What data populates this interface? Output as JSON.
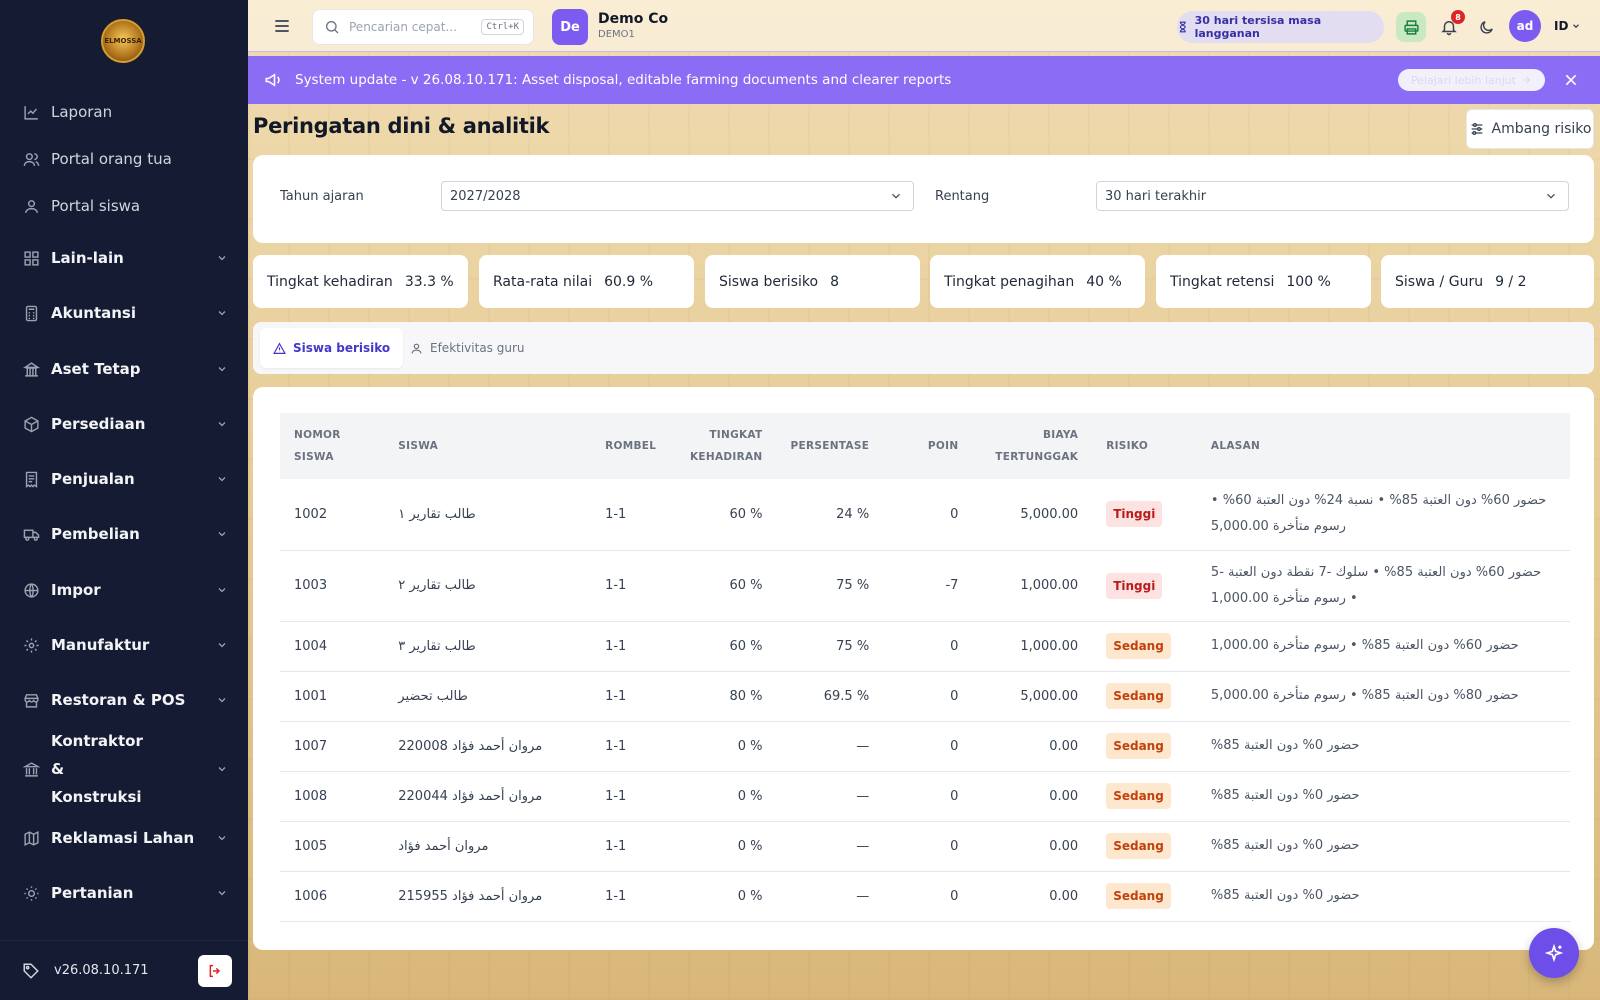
{
  "sidebar": {
    "logo_text": "ELMOSSA",
    "items": [
      {
        "label": "Laporan"
      },
      {
        "label": "Portal orang tua"
      },
      {
        "label": "Portal siswa"
      },
      {
        "label": "Lain-lain"
      },
      {
        "label": "Akuntansi"
      },
      {
        "label": "Aset Tetap"
      },
      {
        "label": "Persediaan"
      },
      {
        "label": "Penjualan"
      },
      {
        "label": "Pembelian"
      },
      {
        "label": "Impor"
      },
      {
        "label": "Manufaktur"
      },
      {
        "label": "Restoran & POS"
      },
      {
        "label": "Kontraktor & Konstruksi"
      },
      {
        "label": "Reklamasi Lahan"
      },
      {
        "label": "Pertanian"
      }
    ],
    "version": "v26.08.10.171"
  },
  "topbar": {
    "search_placeholder": "Pencarian cepat...",
    "search_shortcut": "Ctrl+K",
    "company_initials": "De",
    "company_name": "Demo Co",
    "company_code": "DEMO1",
    "subscription": "30 hari tersisa masa langganan",
    "notification_count": "8",
    "user_initials": "ad",
    "language": "ID"
  },
  "banner": {
    "message": "System update - v 26.08.10.171: Asset disposal, editable farming documents and clearer reports",
    "learn_more": "Pelajari lebih lanjut"
  },
  "page": {
    "title": "Peringatan dini & analitik",
    "threshold_button": "Ambang risiko"
  },
  "filters": {
    "year_label": "Tahun ajaran",
    "year_value": "2027/2028",
    "range_label": "Rentang",
    "range_value": "30 hari terakhir"
  },
  "stats": [
    {
      "label": "Tingkat kehadiran",
      "value": "33.3 %"
    },
    {
      "label": "Rata-rata nilai",
      "value": "60.9 %"
    },
    {
      "label": "Siswa berisiko",
      "value": "8"
    },
    {
      "label": "Tingkat penagihan",
      "value": "40 %"
    },
    {
      "label": "Tingkat retensi",
      "value": "100 %"
    },
    {
      "label": "Siswa / Guru",
      "value": "9 / 2"
    }
  ],
  "tabs": [
    {
      "label": "Siswa berisiko"
    },
    {
      "label": "Efektivitas guru"
    }
  ],
  "table": {
    "headers": {
      "student_no_1": "NOMOR",
      "student_no_2": "SISWA",
      "student": "SISWA",
      "group": "ROMBEL",
      "attendance_1": "TINGKAT",
      "attendance_2": "KEHADIRAN",
      "percentage": "PERSENTASE",
      "points": "POIN",
      "fees_1": "BIAYA",
      "fees_2": "TERTUNGGAK",
      "risk": "RISIKO",
      "reason": "ALASAN"
    },
    "rows": [
      {
        "no": "1002",
        "name": "طالب تقارير ١",
        "group": "1-1",
        "attendance": "60 %",
        "percentage": "24 %",
        "points": "0",
        "fees": "5,000.00",
        "risk": "Tinggi",
        "level": "high",
        "reason": "حضور 60% دون العتبة 85% • نسبة 24% دون العتبة 60% • رسوم متأخرة 5,000.00"
      },
      {
        "no": "1003",
        "name": "طالب تقارير ٢",
        "group": "1-1",
        "attendance": "60 %",
        "percentage": "75 %",
        "points": "-7",
        "fees": "1,000.00",
        "risk": "Tinggi",
        "level": "high",
        "reason": "حضور 60% دون العتبة 85% • سلوك -7 نقطة دون العتبة -5 • رسوم متأخرة 1,000.00"
      },
      {
        "no": "1004",
        "name": "طالب تقارير ٣",
        "group": "1-1",
        "attendance": "60 %",
        "percentage": "75 %",
        "points": "0",
        "fees": "1,000.00",
        "risk": "Sedang",
        "level": "med",
        "reason": "حضور 60% دون العتبة 85% • رسوم متأخرة 1,000.00"
      },
      {
        "no": "1001",
        "name": "طالب تحضير",
        "group": "1-1",
        "attendance": "80 %",
        "percentage": "69.5 %",
        "points": "0",
        "fees": "5,000.00",
        "risk": "Sedang",
        "level": "med",
        "reason": "حضور 80% دون العتبة 85% • رسوم متأخرة 5,000.00"
      },
      {
        "no": "1007",
        "name": "مروان أحمد فؤاد 220008",
        "group": "1-1",
        "attendance": "0 %",
        "percentage": "—",
        "points": "0",
        "fees": "0.00",
        "risk": "Sedang",
        "level": "med",
        "reason": "حضور 0% دون العتبة 85%"
      },
      {
        "no": "1008",
        "name": "مروان أحمد فؤاد 220044",
        "group": "1-1",
        "attendance": "0 %",
        "percentage": "—",
        "points": "0",
        "fees": "0.00",
        "risk": "Sedang",
        "level": "med",
        "reason": "حضور 0% دون العتبة 85%"
      },
      {
        "no": "1005",
        "name": "مروان أحمد فؤاد",
        "group": "1-1",
        "attendance": "0 %",
        "percentage": "—",
        "points": "0",
        "fees": "0.00",
        "risk": "Sedang",
        "level": "med",
        "reason": "حضور 0% دون العتبة 85%"
      },
      {
        "no": "1006",
        "name": "مروان أحمد فؤاد 215955",
        "group": "1-1",
        "attendance": "0 %",
        "percentage": "—",
        "points": "0",
        "fees": "0.00",
        "risk": "Sedang",
        "level": "med",
        "reason": "حضور 0% دون العتبة 85%"
      }
    ]
  },
  "colors": {
    "accent": "#7c5cf0",
    "sidebar": "#141b33",
    "banner": "#8b6cf4",
    "risk_high": "#b91c1c",
    "risk_medium": "#c2410c"
  }
}
